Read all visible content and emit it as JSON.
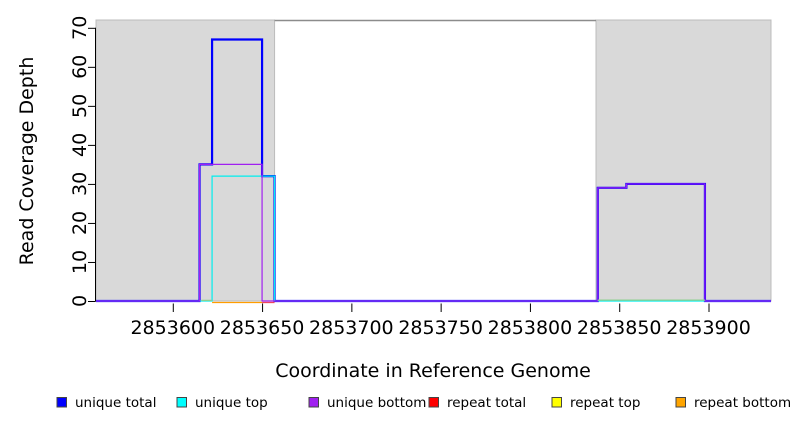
{
  "chart_data": {
    "type": "line",
    "subtype": "step-coverage",
    "title": "",
    "xlabel": "Coordinate in Reference Genome",
    "ylabel": "Read Coverage Depth",
    "xlim": [
      2853557,
      2853935
    ],
    "ylim": [
      0,
      72
    ],
    "grid": false,
    "x_ticks": [
      2853600,
      2853650,
      2853700,
      2853750,
      2853800,
      2853850,
      2853900
    ],
    "y_ticks": [
      0,
      10,
      20,
      30,
      40,
      50,
      60,
      70
    ],
    "shaded_regions": [
      {
        "name": "left-region",
        "x0": 2853557,
        "x1": 2853657,
        "fill": "#d9d9d9",
        "stroke": "#bcbcbc"
      },
      {
        "name": "right-region",
        "x0": 2853837,
        "x1": 2853935,
        "fill": "#d9d9d9",
        "stroke": "#bcbcbc"
      }
    ],
    "gap_top_line": {
      "x0": 2853657,
      "x1": 2853837,
      "y": 72,
      "color": "#8c8c8c"
    },
    "series": [
      {
        "name": "unique total",
        "color": "#0000ff",
        "width": 2.2,
        "steps": [
          [
            2853557,
            0
          ],
          [
            2853615,
            35
          ],
          [
            2853622,
            67
          ],
          [
            2853650,
            32
          ],
          [
            2853657,
            0
          ],
          [
            2853838,
            29
          ],
          [
            2853854,
            30
          ],
          [
            2853898,
            0
          ]
        ]
      },
      {
        "name": "unique top",
        "color": "#00eeee",
        "width": 1.2,
        "steps": [
          [
            2853557,
            0
          ],
          [
            2853622,
            32
          ],
          [
            2853657,
            0
          ]
        ]
      },
      {
        "name": "unique bottom",
        "color": "#a020f0",
        "width": 1.2,
        "steps": [
          [
            2853557,
            0
          ],
          [
            2853615,
            35
          ],
          [
            2853650,
            0
          ],
          [
            2853838,
            29
          ],
          [
            2853854,
            30
          ],
          [
            2853898,
            0
          ]
        ]
      }
    ],
    "overlap_segments": [
      {
        "x0": 2853616,
        "x1": 2853622,
        "y": 0,
        "color": "#8fd08f",
        "offset": -0.6,
        "note": "unique top + repeat top at zero"
      },
      {
        "x0": 2853622,
        "x1": 2853650,
        "y": 0,
        "color": "#ff9d00",
        "offset": 1.5,
        "note": "repeat bottom at zero"
      },
      {
        "x0": 2853650,
        "x1": 2853657,
        "y": 0,
        "color": "#ee4560",
        "offset": 1.5,
        "note": "repeat total at zero"
      },
      {
        "x0": 2853838,
        "x1": 2853898,
        "y": 0,
        "color": "#8fd08f",
        "offset": -0.9,
        "note": "unique top + repeat top at zero"
      }
    ],
    "legend": {
      "position": "bottom",
      "entries": [
        {
          "label": "unique total",
          "color": "#0000ff"
        },
        {
          "label": "unique top",
          "color": "#00ffff"
        },
        {
          "label": "unique bottom",
          "color": "#a020f0"
        },
        {
          "label": "repeat total",
          "color": "#ff0000"
        },
        {
          "label": "repeat top",
          "color": "#ffff00"
        },
        {
          "label": "repeat bottom",
          "color": "#ffa500"
        }
      ]
    }
  }
}
